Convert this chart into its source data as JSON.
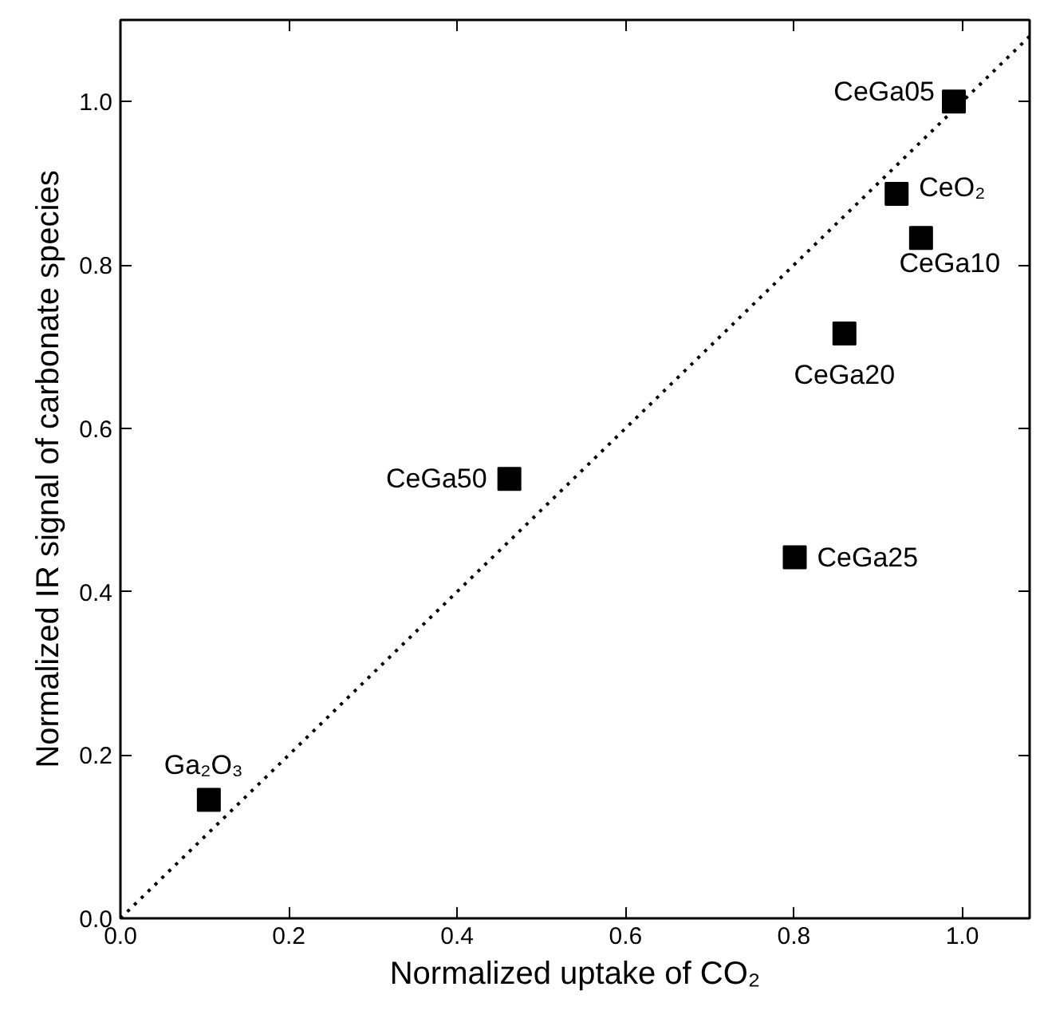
{
  "chart_data": {
    "type": "scatter",
    "xlabel": "Normalized uptake of CO₂",
    "ylabel": "Normalized IR signal of carbonate species",
    "x": [
      0.105,
      0.462,
      0.801,
      0.86,
      0.951,
      0.922,
      0.99
    ],
    "series": [
      {
        "color": "#000000",
        "values": [
          0.145,
          0.538,
          0.442,
          0.716,
          0.833,
          0.887,
          1.0
        ],
        "marker": "square"
      },
      {
        "type": "line",
        "color": "#000000",
        "x": [
          0,
          1.08
        ],
        "values": [
          0,
          1.08
        ],
        "line_style": "dotted",
        "marker": "none"
      }
    ],
    "annotations": [
      {
        "text": "Ga₂O₃",
        "x": 0.105,
        "y": 0.145
      },
      {
        "text": "CeGa50",
        "x": 0.462,
        "y": 0.538
      },
      {
        "text": "CeGa25",
        "x": 0.801,
        "y": 0.442
      },
      {
        "text": "CeGa20",
        "x": 0.86,
        "y": 0.716
      },
      {
        "text": "CeGa10",
        "x": 0.951,
        "y": 0.833
      },
      {
        "text": "CeO₂",
        "x": 0.922,
        "y": 0.887
      },
      {
        "text": "CeGa05",
        "x": 0.99,
        "y": 1.0
      }
    ],
    "xlim": [
      0,
      1.08
    ],
    "ylim": [
      0,
      1.1
    ],
    "xticks": [
      "0.0",
      0.2,
      0.4,
      0.6,
      0.8,
      "1.0"
    ],
    "yticks": [
      "0.0",
      0.2,
      0.4,
      0.6,
      0.8,
      "1.0"
    ],
    "grid": false
  }
}
